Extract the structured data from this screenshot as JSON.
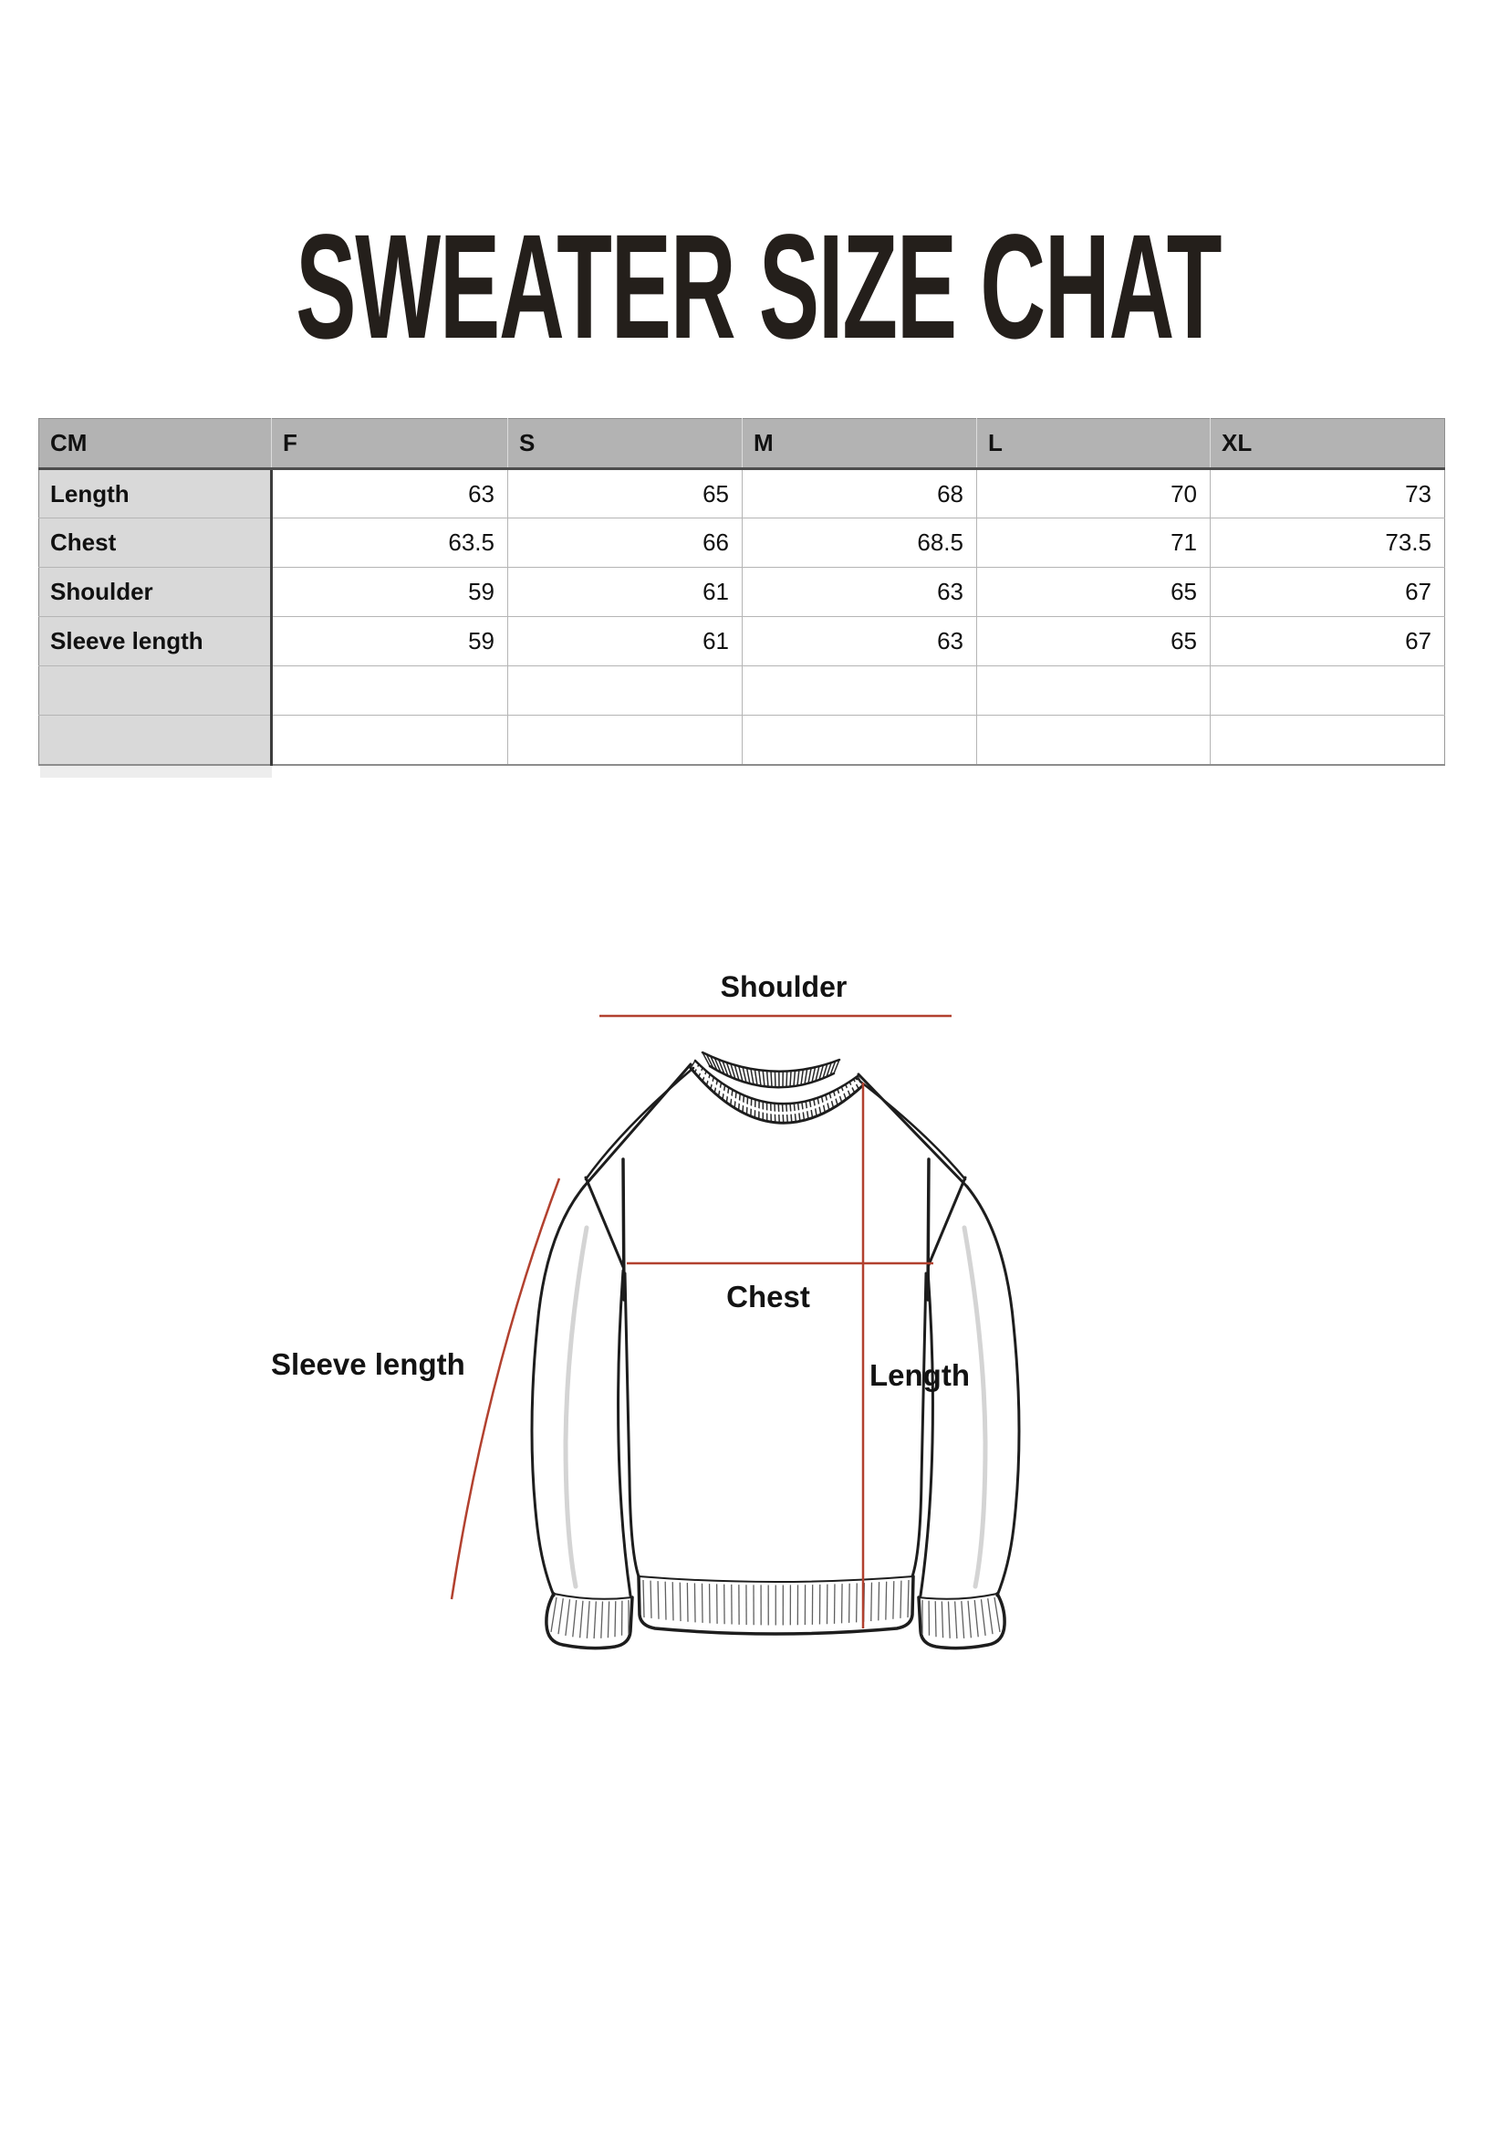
{
  "page": {
    "title": "SWEATER SIZE CHAT"
  },
  "size_table": {
    "unit_header": "CM",
    "size_headers": [
      "F",
      "S",
      "M",
      "L",
      "XL"
    ],
    "rows": [
      {
        "label": "Length",
        "values": [
          "63",
          "65",
          "68",
          "70",
          "73"
        ]
      },
      {
        "label": "Chest",
        "values": [
          "63.5",
          "66",
          "68.5",
          "71",
          "73.5"
        ]
      },
      {
        "label": "Shoulder",
        "values": [
          "59",
          "61",
          "63",
          "65",
          "67"
        ]
      },
      {
        "label": "Sleeve length",
        "values": [
          "59",
          "61",
          "63",
          "65",
          "67"
        ]
      },
      {
        "label": "",
        "values": [
          "",
          "",
          "",
          "",
          ""
        ]
      },
      {
        "label": "",
        "values": [
          "",
          "",
          "",
          "",
          ""
        ]
      }
    ]
  },
  "diagram": {
    "labels": {
      "shoulder": "Shoulder",
      "chest": "Chest",
      "length": "Length",
      "sleeve_length": "Sleeve length"
    },
    "measure_line_color": "#b2412f"
  },
  "colors": {
    "title_text": "#241f1b",
    "table_header_bg": "#b3b3b3",
    "table_label_bg": "#d9d9d9",
    "measure_line": "#b2412f"
  }
}
